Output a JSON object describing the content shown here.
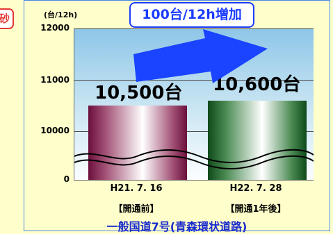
{
  "badge": {
    "text": "砂"
  },
  "callout": {
    "text": "100台/12h増加"
  },
  "colors": {
    "callout_border": "#1a3cff",
    "arrow": "#1a44ff",
    "bar_1": "#7a1f4a",
    "bar_2": "#1e6a2a",
    "title": "#1a2bcc",
    "badge": "#e53935"
  },
  "chart_data": {
    "type": "bar",
    "unit_label": "(台/12h)",
    "ylim": [
      9650,
      12000
    ],
    "yticks": [
      "12000",
      "11000",
      "10000",
      "0"
    ],
    "axis_break": true,
    "grid": true,
    "categories": [
      "H21. 7. 16",
      "H22. 7. 28"
    ],
    "category_notes": [
      "【開通前】",
      "【開通1年後】"
    ],
    "values": [
      10500,
      10600
    ],
    "value_labels": [
      "10,500台",
      "10,600台"
    ],
    "annotation": "100台/12h増加",
    "subtitle": "一般国道7号(青森環状道路)"
  }
}
